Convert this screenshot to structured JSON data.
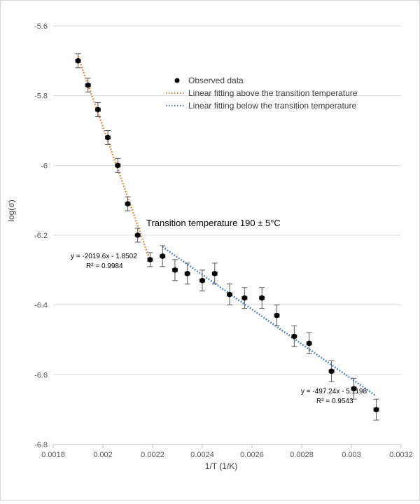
{
  "chart_data": {
    "type": "scatter",
    "title": "",
    "xlabel": "1/T (1/K)",
    "ylabel": "log(σ)",
    "xlim": [
      0.0018,
      0.0032
    ],
    "ylim": [
      -6.8,
      -5.6
    ],
    "xticks": [
      0.0018,
      0.002,
      0.0022,
      0.0024,
      0.0026,
      0.0028,
      0.003,
      0.0032
    ],
    "xtick_labels": [
      "0.0018",
      "0.002",
      "0.0022",
      "0.0024",
      "0.0026",
      "0.0028",
      "0.003",
      "0.0032"
    ],
    "yticks": [
      -5.6,
      -5.8,
      -6.0,
      -6.2,
      -6.4,
      -6.6,
      -6.8
    ],
    "ytick_labels": [
      "-5.6",
      "-5.8",
      "-6",
      "-6.2",
      "-6.4",
      "-6.6",
      "-6.8"
    ],
    "grid": "horizontal",
    "legend": {
      "position": "upper-right",
      "entries": [
        "Observed data",
        "Linear fitting above the transition temperature",
        "Linear fitting below the transition temperature"
      ]
    },
    "series": [
      {
        "name": "Observed data",
        "type": "scatter",
        "color": "#000000",
        "x": [
          0.0019,
          0.00194,
          0.00198,
          0.00202,
          0.00206,
          0.0021,
          0.00214,
          0.00219,
          0.00224,
          0.00229,
          0.00234,
          0.0024,
          0.00245,
          0.00251,
          0.00257,
          0.00264,
          0.0027,
          0.00277,
          0.00283,
          0.00292,
          0.00301,
          0.0031
        ],
        "y": [
          -5.7,
          -5.77,
          -5.84,
          -5.92,
          -6.0,
          -6.11,
          -6.2,
          -6.27,
          -6.26,
          -6.3,
          -6.31,
          -6.33,
          -6.31,
          -6.37,
          -6.38,
          -6.38,
          -6.43,
          -6.49,
          -6.51,
          -6.59,
          -6.64,
          -6.7
        ],
        "yerr": 0.02,
        "yerr_right": 0.03,
        "xerr": 1e-05
      },
      {
        "name": "Linear fitting above the transition temperature",
        "type": "line",
        "style": "dotted",
        "color": "#ED7D31",
        "slope": -2019.6,
        "intercept": -1.8502,
        "x_range": [
          0.0019,
          0.00219
        ]
      },
      {
        "name": "Linear fitting below the transition temperature",
        "type": "line",
        "style": "dotted",
        "color": "#4472C4",
        "slope": -497.24,
        "intercept": -5.1198,
        "x_range": [
          0.00224,
          0.0031
        ]
      }
    ],
    "annotations": [
      {
        "text": "Transition temperature 190 ± 5°C"
      },
      {
        "text": "y = -2019.6x - 1.8502"
      },
      {
        "text": "R² = 0.9984"
      },
      {
        "text": "y = -497.24x - 5.1198"
      },
      {
        "text": "R² = 0.9543"
      }
    ]
  }
}
